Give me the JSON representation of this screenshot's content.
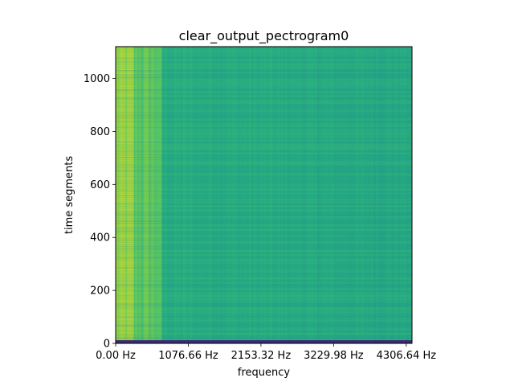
{
  "chart_data": {
    "type": "heatmap",
    "title": "clear_output_pectrogram0",
    "xlabel": "frequency",
    "ylabel": "time segments",
    "x_ticks": [
      0.0,
      1076.66,
      2153.32,
      3229.98,
      4306.64
    ],
    "x_tick_labels": [
      "0.00 Hz",
      "1076.66 Hz",
      "2153.32 Hz",
      "3229.98 Hz",
      "4306.64 Hz"
    ],
    "xlim": [
      0,
      4392
    ],
    "y_ticks": [
      0,
      200,
      400,
      600,
      800,
      1000
    ],
    "y_tick_labels": [
      "0",
      "200",
      "400",
      "600",
      "800",
      "1000"
    ],
    "ylim": [
      0,
      1120
    ],
    "colormap": "viridis",
    "grid": false,
    "colors": {
      "low": "#440154",
      "dark_band": "#3b2c70",
      "mid": "#2fb47c",
      "mid_teal": "#26a384",
      "high": "#c8e020"
    }
  }
}
